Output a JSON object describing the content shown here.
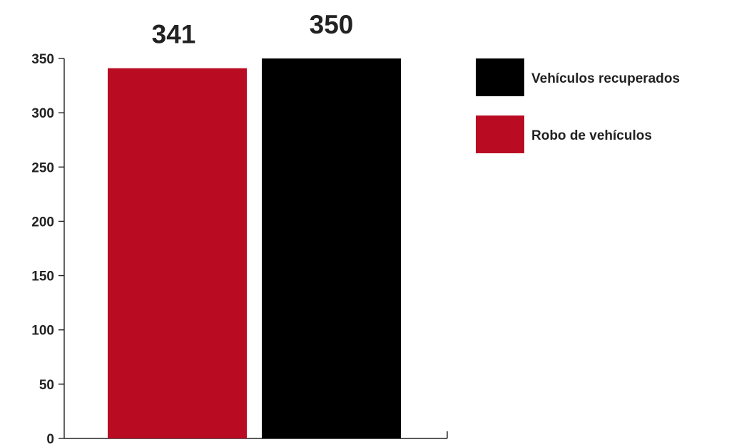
{
  "chart_data": {
    "type": "bar",
    "title": "",
    "xlabel": "",
    "ylabel": "",
    "ylim": [
      0,
      350
    ],
    "yticks": [
      0,
      50,
      100,
      150,
      200,
      250,
      300,
      350
    ],
    "grid": false,
    "legend_position": "right",
    "series": [
      {
        "name": "Robo de vehículos",
        "value": 341,
        "value_label": "341",
        "color": "#b90b22"
      },
      {
        "name": "Vehículos recuperados",
        "value": 350,
        "value_label": "350",
        "color": "#000000"
      }
    ],
    "legend_order": [
      "Vehículos recuperados",
      "Robo de vehículos"
    ]
  }
}
